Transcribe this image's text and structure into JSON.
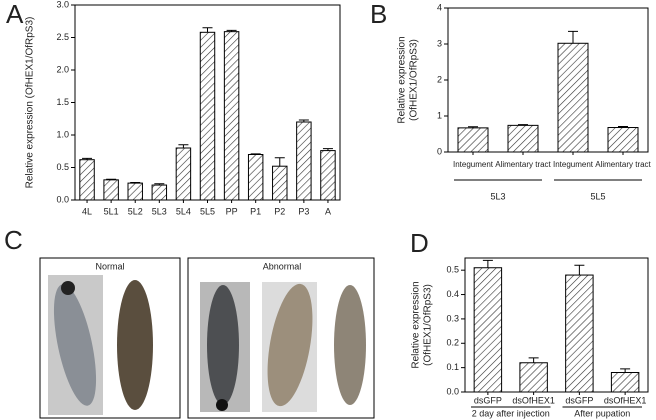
{
  "chart_data": [
    {
      "type": "bar",
      "panel": "A",
      "y_label": [
        "Relative expression (OfHEX1/OfRpS3)"
      ],
      "categories": [
        "4L",
        "5L1",
        "5L2",
        "5L3",
        "5L4",
        "5L5",
        "PP",
        "P1",
        "P2",
        "P3",
        "A"
      ],
      "values": [
        0.62,
        0.31,
        0.26,
        0.23,
        0.8,
        2.58,
        2.59,
        0.7,
        0.52,
        1.2,
        0.76
      ],
      "errors": [
        0.02,
        0.01,
        0.01,
        0.02,
        0.05,
        0.07,
        0.02,
        0.01,
        0.13,
        0.03,
        0.03
      ],
      "ylim": [
        0,
        3
      ],
      "yticks": [
        {
          "value": 0,
          "label": "0.0"
        },
        0.5,
        {
          "value": 1,
          "label": "1.0"
        },
        1.5,
        {
          "value": 2,
          "label": "2.0"
        },
        2.5,
        {
          "value": 3,
          "label": "3.0"
        }
      ],
      "groups": []
    },
    {
      "type": "bar",
      "panel": "B",
      "y_label": [
        "Relative expression",
        "(OfHEX1/OfRpS3)"
      ],
      "categories": [
        "Integument",
        "Alimentary tract",
        "Integument",
        "Alimentary tract"
      ],
      "values": [
        0.67,
        0.74,
        3.02,
        0.68
      ],
      "errors": [
        0.03,
        0.02,
        0.33,
        0.03
      ],
      "ylim": [
        0,
        4
      ],
      "yticks": [
        0,
        1,
        2,
        3,
        4
      ],
      "groups": [
        "5L3",
        "5L5"
      ]
    },
    {
      "type": "image",
      "panel": "C",
      "captions": [
        "Normal",
        "Abnormal"
      ]
    },
    {
      "type": "bar",
      "panel": "D",
      "y_label": [
        "Relative expression",
        "(OfHEX1/OfRpS3)"
      ],
      "categories": [
        "dsGFP",
        "dsOfHEX1",
        "dsGFP",
        "dsOfHEX1"
      ],
      "values": [
        0.51,
        0.12,
        0.48,
        0.08
      ],
      "errors": [
        0.03,
        0.02,
        0.04,
        0.015
      ],
      "ylim": [
        0,
        0.55
      ],
      "yticks": [
        {
          "value": 0,
          "label": "0.0"
        },
        0.1,
        0.2,
        0.3,
        0.4,
        0.5
      ],
      "groups": [
        "2 day after injection",
        "After pupation"
      ]
    }
  ]
}
